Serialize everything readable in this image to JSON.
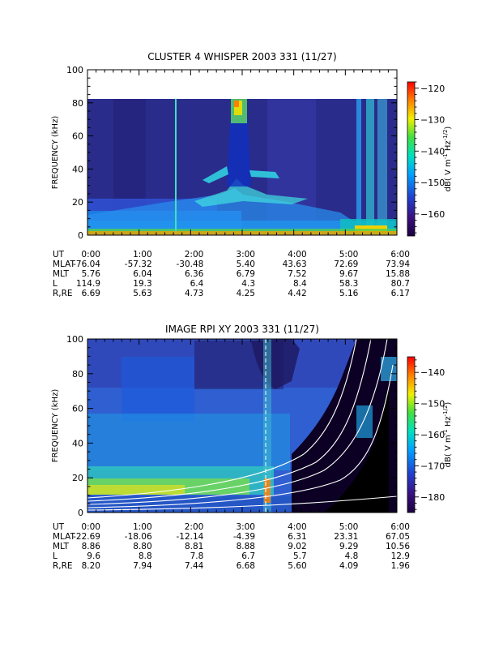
{
  "chart_data": [
    {
      "type": "heatmap",
      "title": "CLUSTER 4 WHISPER 2003 331 (11/27)",
      "ylabel": "FREQUENCY (kHz)",
      "ylim": [
        0,
        100
      ],
      "yticks": [
        "0",
        "20",
        "40",
        "60",
        "80",
        "100"
      ],
      "xlim_hours": [
        0,
        6
      ],
      "colorbar": {
        "label_parts": [
          "dB( V m",
          "-1",
          " Hz",
          "-1/2",
          ")"
        ],
        "range": [
          -167,
          -118
        ],
        "ticks": [
          "-120",
          "-130",
          "-140",
          "-150",
          "-160"
        ],
        "colors": [
          "#1c0040",
          "#3a1080",
          "#2040d0",
          "#00a0ff",
          "#00e0c0",
          "#40e040",
          "#f0f000",
          "#ff8000",
          "#ff0000"
        ]
      },
      "ephemeris": {
        "labels": [
          "UT",
          "MLAT",
          "MLT",
          "L",
          "R,RE"
        ],
        "UT": [
          "0:00",
          "1:00",
          "2:00",
          "3:00",
          "4:00",
          "5:00",
          "6:00"
        ],
        "MLAT": [
          "-76.04",
          "-57.32",
          "-30.48",
          "5.40",
          "43.63",
          "72.69",
          "73.94"
        ],
        "MLT": [
          "5.76",
          "6.04",
          "6.36",
          "6.79",
          "7.52",
          "9.67",
          "15.88"
        ],
        "L": [
          "114.9",
          "19.3",
          "6.4",
          "4.3",
          "8.4",
          "58.3",
          "80.7"
        ],
        "R,RE": [
          "6.69",
          "5.63",
          "4.73",
          "4.25",
          "4.42",
          "5.16",
          "6.17"
        ]
      }
    },
    {
      "type": "heatmap",
      "title": "IMAGE RPI XY 2003 331 (11/27)",
      "ylabel": "FREQUENCY (kHz)",
      "ylim": [
        0,
        100
      ],
      "yticks": [
        "0",
        "20",
        "40",
        "60",
        "80",
        "100"
      ],
      "xlim_hours": [
        0,
        6
      ],
      "colorbar": {
        "label_parts": [
          "dB( V m",
          "-1",
          " Hz",
          "-1/2",
          ")"
        ],
        "range": [
          -185,
          -135
        ],
        "ticks": [
          "-140",
          "-150",
          "-160",
          "-170",
          "-180"
        ],
        "colors": [
          "#1c0040",
          "#3a1080",
          "#2040d0",
          "#00a0ff",
          "#00e0c0",
          "#40e040",
          "#f0f000",
          "#ff8000",
          "#ff0000"
        ]
      },
      "ephemeris": {
        "labels": [
          "UT",
          "MLAT",
          "MLT",
          "L",
          "R,RE"
        ],
        "UT": [
          "0:00",
          "1:00",
          "2:00",
          "3:00",
          "4:00",
          "5:00",
          "6:00"
        ],
        "MLAT": [
          "-22.69",
          "-18.06",
          "-12.14",
          "-4.39",
          "6.31",
          "23.31",
          "67.05"
        ],
        "MLT": [
          "8.86",
          "8.80",
          "8.81",
          "8.88",
          "9.02",
          "9.29",
          "10.56"
        ],
        "L": [
          "9.6",
          "8.8",
          "7.8",
          "6.7",
          "5.7",
          "4.8",
          "12.9"
        ],
        "R,RE": [
          "8.20",
          "7.94",
          "7.44",
          "6.68",
          "5.60",
          "4.09",
          "1.96"
        ]
      }
    }
  ]
}
